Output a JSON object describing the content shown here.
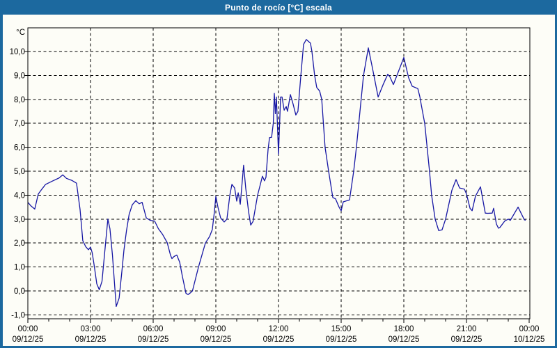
{
  "window": {
    "title": "Punto de rocío [°C] escala"
  },
  "colors": {
    "frame_blue": "#1c699f",
    "plot_background": "#fdfdf7",
    "grid_black": "#000000",
    "series_navy": "#1717a4"
  },
  "chart_data": {
    "type": "line",
    "title": "Punto de rocío [°C] escala",
    "grid": "dashed both axes",
    "legend": "none",
    "y_axis": {
      "unit_label": "°C",
      "tick_labels": [
        "10,0",
        "9,0",
        "8,0",
        "7,0",
        "6,0",
        "5,0",
        "4,0",
        "3,0",
        "2,0",
        "1,0",
        "0,0",
        "-1,0"
      ],
      "tick_values": [
        10,
        9,
        8,
        7,
        6,
        5,
        4,
        3,
        2,
        1,
        0,
        -1
      ],
      "range_shown": [
        -1.16,
        11.0
      ]
    },
    "x_axis": {
      "span_hours": 24,
      "major_tick_hours": 3,
      "minor_tick_hours": 1,
      "tick_labels": [
        {
          "time": "00:00",
          "date": "09/12/25"
        },
        {
          "time": "03:00",
          "date": "09/12/25"
        },
        {
          "time": "06:00",
          "date": "09/12/25"
        },
        {
          "time": "09:00",
          "date": "09/12/25"
        },
        {
          "time": "12:00",
          "date": "09/12/25"
        },
        {
          "time": "15:00",
          "date": "09/12/25"
        },
        {
          "time": "18:00",
          "date": "09/12/25"
        },
        {
          "time": "21:00",
          "date": "09/12/25"
        },
        {
          "time": "00:00",
          "date": "10/12/25"
        }
      ]
    },
    "series": [
      {
        "name": "Punto de rocío",
        "color": "#1717a4",
        "points_hour_value": [
          [
            0,
            3.7
          ],
          [
            0.15,
            3.55
          ],
          [
            0.33,
            3.42
          ],
          [
            0.5,
            4.05
          ],
          [
            0.67,
            4.25
          ],
          [
            0.85,
            4.45
          ],
          [
            1.2,
            4.6
          ],
          [
            1.5,
            4.72
          ],
          [
            1.67,
            4.85
          ],
          [
            1.85,
            4.7
          ],
          [
            2.1,
            4.62
          ],
          [
            2.33,
            4.5
          ],
          [
            2.5,
            3.4
          ],
          [
            2.63,
            2.1
          ],
          [
            2.77,
            1.85
          ],
          [
            2.9,
            1.72
          ],
          [
            3.0,
            1.83
          ],
          [
            3.08,
            1.6
          ],
          [
            3.17,
            1.1
          ],
          [
            3.3,
            0.3
          ],
          [
            3.42,
            0.05
          ],
          [
            3.55,
            0.4
          ],
          [
            3.7,
            1.8
          ],
          [
            3.83,
            3.0
          ],
          [
            3.93,
            2.6
          ],
          [
            4.05,
            1.5
          ],
          [
            4.15,
            0.3
          ],
          [
            4.23,
            -0.65
          ],
          [
            4.37,
            -0.3
          ],
          [
            4.5,
            0.8
          ],
          [
            4.6,
            1.7
          ],
          [
            4.72,
            2.5
          ],
          [
            4.85,
            3.2
          ],
          [
            5.0,
            3.6
          ],
          [
            5.17,
            3.77
          ],
          [
            5.33,
            3.64
          ],
          [
            5.47,
            3.7
          ],
          [
            5.67,
            3.05
          ],
          [
            5.85,
            2.95
          ],
          [
            6.07,
            2.92
          ],
          [
            6.25,
            2.6
          ],
          [
            6.45,
            2.36
          ],
          [
            6.67,
            2.02
          ],
          [
            6.83,
            1.49
          ],
          [
            6.9,
            1.35
          ],
          [
            7.0,
            1.44
          ],
          [
            7.13,
            1.5
          ],
          [
            7.27,
            1.2
          ],
          [
            7.4,
            0.6
          ],
          [
            7.57,
            -0.1
          ],
          [
            7.67,
            -0.15
          ],
          [
            7.78,
            -0.08
          ],
          [
            7.88,
            0.0
          ],
          [
            8.17,
            1.0
          ],
          [
            8.5,
            2.0
          ],
          [
            8.7,
            2.27
          ],
          [
            8.83,
            2.56
          ],
          [
            8.93,
            3.3
          ],
          [
            9.0,
            3.95
          ],
          [
            9.1,
            3.5
          ],
          [
            9.23,
            3.05
          ],
          [
            9.4,
            2.88
          ],
          [
            9.53,
            3.0
          ],
          [
            9.67,
            4.0
          ],
          [
            9.77,
            4.45
          ],
          [
            9.9,
            4.3
          ],
          [
            10.0,
            3.75
          ],
          [
            10.07,
            4.1
          ],
          [
            10.17,
            3.62
          ],
          [
            10.33,
            5.25
          ],
          [
            10.43,
            4.3
          ],
          [
            10.57,
            3.3
          ],
          [
            10.67,
            2.75
          ],
          [
            10.78,
            2.9
          ],
          [
            11.0,
            4.0
          ],
          [
            11.23,
            4.79
          ],
          [
            11.33,
            4.6
          ],
          [
            11.4,
            4.75
          ],
          [
            11.5,
            5.9
          ],
          [
            11.57,
            6.4
          ],
          [
            11.67,
            6.42
          ],
          [
            11.75,
            7.0
          ],
          [
            11.8,
            8.25
          ],
          [
            11.85,
            7.4
          ],
          [
            11.9,
            8.1
          ],
          [
            11.95,
            6.9
          ],
          [
            12.0,
            5.7
          ],
          [
            12.05,
            6.9
          ],
          [
            12.1,
            8.1
          ],
          [
            12.17,
            8.1
          ],
          [
            12.27,
            7.55
          ],
          [
            12.37,
            7.7
          ],
          [
            12.43,
            7.5
          ],
          [
            12.57,
            8.2
          ],
          [
            12.7,
            7.8
          ],
          [
            12.83,
            7.35
          ],
          [
            12.93,
            7.5
          ],
          [
            13.07,
            9.0
          ],
          [
            13.2,
            10.3
          ],
          [
            13.33,
            10.5
          ],
          [
            13.53,
            10.35
          ],
          [
            13.6,
            10.0
          ],
          [
            13.73,
            9.0
          ],
          [
            13.83,
            8.5
          ],
          [
            13.97,
            8.35
          ],
          [
            14.07,
            8.0
          ],
          [
            14.23,
            6.0
          ],
          [
            14.4,
            5.0
          ],
          [
            14.6,
            3.9
          ],
          [
            14.73,
            3.85
          ],
          [
            14.9,
            3.5
          ],
          [
            15.0,
            3.35
          ],
          [
            15.1,
            3.72
          ],
          [
            15.4,
            3.8
          ],
          [
            15.6,
            5.0
          ],
          [
            15.73,
            6.0
          ],
          [
            15.9,
            7.5
          ],
          [
            16.07,
            9.0
          ],
          [
            16.3,
            10.15
          ],
          [
            16.5,
            9.3
          ],
          [
            16.77,
            8.1
          ],
          [
            17.0,
            8.6
          ],
          [
            17.23,
            9.05
          ],
          [
            17.33,
            8.95
          ],
          [
            17.5,
            8.62
          ],
          [
            17.67,
            9.0
          ],
          [
            18.0,
            9.75
          ],
          [
            18.23,
            8.9
          ],
          [
            18.4,
            8.55
          ],
          [
            18.67,
            8.45
          ],
          [
            18.77,
            8.1
          ],
          [
            18.83,
            7.8
          ],
          [
            19.0,
            7.0
          ],
          [
            19.23,
            5.0
          ],
          [
            19.33,
            4.0
          ],
          [
            19.5,
            3.0
          ],
          [
            19.67,
            2.52
          ],
          [
            19.83,
            2.55
          ],
          [
            20.0,
            3.0
          ],
          [
            20.3,
            4.2
          ],
          [
            20.5,
            4.65
          ],
          [
            20.67,
            4.3
          ],
          [
            20.9,
            4.25
          ],
          [
            21.0,
            4.05
          ],
          [
            21.17,
            3.45
          ],
          [
            21.27,
            3.35
          ],
          [
            21.43,
            3.96
          ],
          [
            21.67,
            4.35
          ],
          [
            21.9,
            3.25
          ],
          [
            22.0,
            3.24
          ],
          [
            22.23,
            3.25
          ],
          [
            22.3,
            3.45
          ],
          [
            22.43,
            2.8
          ],
          [
            22.53,
            2.62
          ],
          [
            22.6,
            2.65
          ],
          [
            22.83,
            2.92
          ],
          [
            23.0,
            3.0
          ],
          [
            23.1,
            2.95
          ],
          [
            23.47,
            3.5
          ],
          [
            23.77,
            2.97
          ],
          [
            23.83,
            2.95
          ]
        ]
      }
    ]
  }
}
